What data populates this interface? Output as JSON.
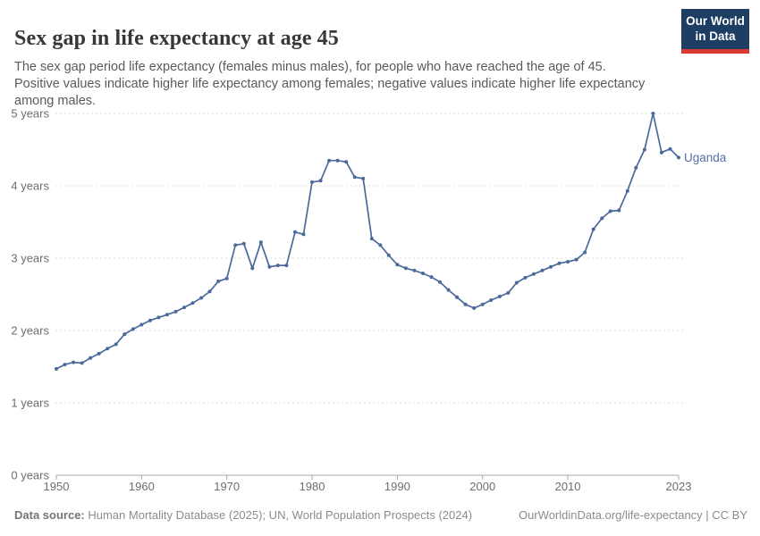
{
  "header": {
    "title": "Sex gap in life expectancy at age 45",
    "subtitle": "The sex gap period life expectancy (females minus males), for people who have reached the age of 45.\nPositive values indicate higher life expectancy among females; negative values indicate higher life expectancy\namong males."
  },
  "logo": {
    "line1": "Our World",
    "line2": "in Data",
    "bg_color": "#1d3d63",
    "bar_color": "#d93a34"
  },
  "chart_data": {
    "type": "line",
    "title": "Sex gap in life expectancy at age 45",
    "year_start": 1950,
    "year_end": 2023,
    "xlim": [
      1950,
      2023
    ],
    "ylim": [
      0,
      5.2
    ],
    "grid": "dashed-horizontal",
    "legend_position": "end-of-line-label",
    "xticks": [
      1950,
      1960,
      1970,
      1980,
      1990,
      2000,
      2010,
      2023
    ],
    "ytick_values": [
      0,
      1,
      2,
      3,
      4,
      5
    ],
    "ytick_suffix": " years",
    "series": [
      {
        "name": "Uganda",
        "color": "#4b699b",
        "label_color": "#5770a4",
        "values": [
          1.47,
          1.53,
          1.56,
          1.55,
          1.62,
          1.68,
          1.75,
          1.81,
          1.95,
          2.02,
          2.08,
          2.14,
          2.18,
          2.22,
          2.26,
          2.32,
          2.38,
          2.45,
          2.54,
          2.68,
          2.72,
          3.18,
          3.2,
          2.86,
          3.22,
          2.88,
          2.9,
          2.9,
          3.36,
          3.33,
          4.05,
          4.07,
          4.35,
          4.35,
          4.33,
          4.12,
          4.1,
          3.27,
          3.18,
          3.04,
          2.91,
          2.86,
          2.83,
          2.79,
          2.74,
          2.67,
          2.56,
          2.46,
          2.36,
          2.31,
          2.36,
          2.42,
          2.47,
          2.52,
          2.66,
          2.73,
          2.78,
          2.83,
          2.88,
          2.93,
          2.95,
          2.98,
          3.08,
          3.4,
          3.55,
          3.65,
          3.66,
          3.93,
          4.25,
          4.5,
          5.0,
          4.46,
          4.51,
          4.39
        ]
      }
    ]
  },
  "footer": {
    "source_label": "Data source:",
    "source_text": " Human Mortality Database (2025); UN, World Population Prospects (2024)",
    "link_text": "OurWorldinData.org/life-expectancy | CC BY"
  },
  "colors": {
    "grid": "#dcdcdc",
    "axis": "#a8a8a8",
    "tick_label": "#6e6e6e"
  }
}
